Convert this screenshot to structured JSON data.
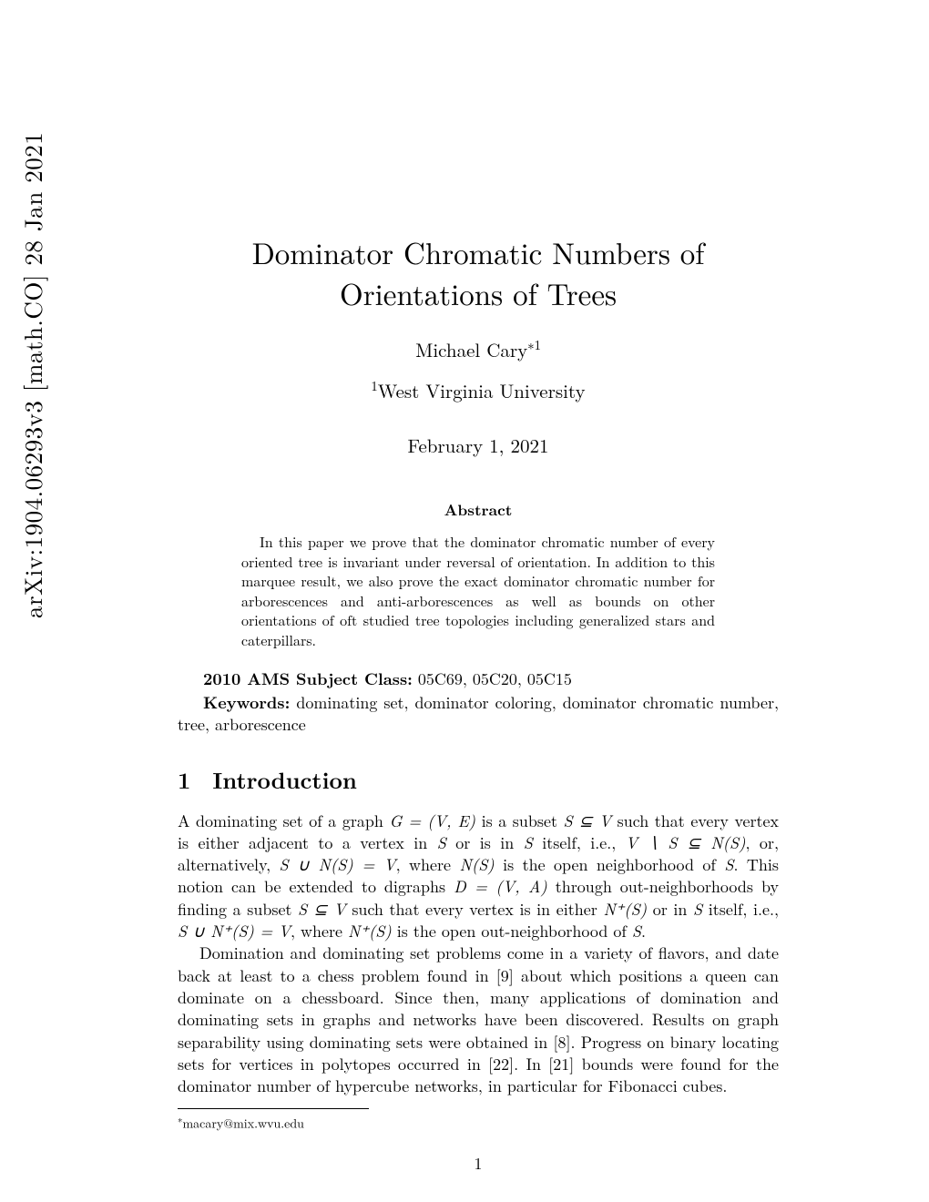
{
  "arxiv": {
    "id_text": "arXiv:1904.06293v3  [math.CO]  28 Jan 2021"
  },
  "title": "Dominator Chromatic Numbers of Orientations of Trees",
  "author": {
    "name": "Michael Cary",
    "marker": "∗1"
  },
  "affiliation": {
    "marker": "1",
    "text": "West Virginia University"
  },
  "date": "February 1, 2021",
  "abstract": {
    "heading": "Abstract",
    "body": "In this paper we prove that the dominator chromatic number of every oriented tree is invariant under reversal of orientation. In addition to this marquee result, we also prove the exact dominator chromatic number for arborescences and anti-arborescences as well as bounds on other orientations of oft studied tree topologies including generalized stars and caterpillars."
  },
  "subject_class": {
    "label": "2010 AMS Subject Class:",
    "value": "05C69, 05C20, 05C15"
  },
  "keywords": {
    "label": "Keywords:",
    "value": "dominating set, dominator coloring, dominator chromatic number, tree, arborescence"
  },
  "section": {
    "number": "1",
    "title": "Introduction"
  },
  "para1_a": "A dominating set of a graph ",
  "para1_b": " is a subset ",
  "para1_c": " such that every vertex is either adjacent to a vertex in ",
  "para1_d": " or is in ",
  "para1_e": " itself, i.e., ",
  "para1_f": ", or, alternatively, ",
  "para1_g": ", where ",
  "para1_h": " is the open neighborhood of ",
  "para1_i": ". This notion can be extended to digraphs ",
  "para1_j": " through out-neighborhoods by finding a subset ",
  "para1_k": " such that every vertex is in either ",
  "para1_l": " or in ",
  "para1_m": " itself, i.e., ",
  "para1_n": ", where ",
  "para1_o": " is the open out-neighborhood of ",
  "para1_p": ".",
  "para2": "Domination and dominating set problems come in a variety of flavors, and date back at least to a chess problem found in [9] about which positions a queen can dominate on a chessboard. Since then, many applications of domination and dominating sets in graphs and networks have been discovered. Results on graph separability using dominating sets were obtained in [8]. Progress on binary locating sets for vertices in polytopes occurred in [22]. In [21] bounds were found for the dominator number of hypercube networks, in particular for Fibonacci cubes.",
  "footnote": {
    "marker": "∗",
    "text": "macary@mix.wvu.edu"
  },
  "page_number": "1",
  "math": {
    "GVE": "G = (V, E)",
    "SsubV": "S ⊆ V",
    "S": "S",
    "VminusS": "V ∖ S ⊆ N(S)",
    "SunionN": "S ∪ N(S) = V",
    "NS": "N(S)",
    "DVA": "D = (V, A)",
    "NplusS": "N⁺(S)",
    "SunionNplus": "S ∪ N⁺(S) = V"
  }
}
